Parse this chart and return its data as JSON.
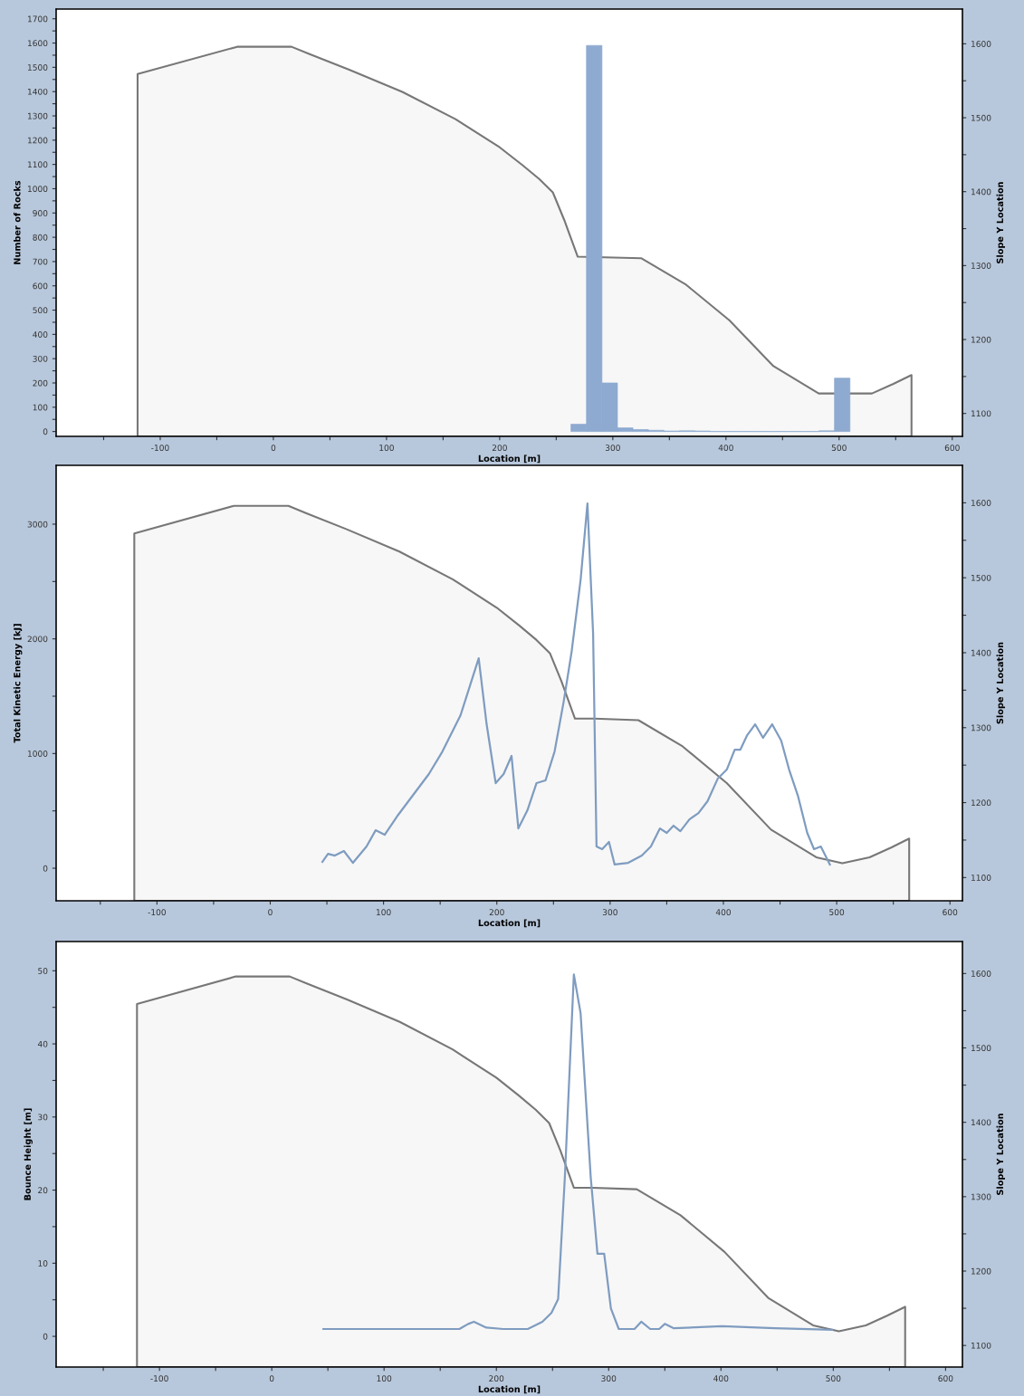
{
  "chart_data": [
    {
      "type": "histogram",
      "ylabel": "Number of Rocks",
      "y2label": "Slope Y Location",
      "xlabel": "Location [m]",
      "xlim": [
        -192,
        609
      ],
      "ylim": [
        -20,
        1740
      ],
      "y2lim": [
        1069,
        1647
      ],
      "xticks": [
        {
          "value": -150,
          "label": null
        },
        -100,
        {
          "value": -50,
          "label": null
        },
        0,
        {
          "value": 50,
          "label": null
        },
        100,
        {
          "value": 150,
          "label": null
        },
        200,
        {
          "value": 250,
          "label": null
        },
        300,
        {
          "value": 350,
          "label": null
        },
        400,
        {
          "value": 450,
          "label": null
        },
        500,
        {
          "value": 550,
          "label": null
        },
        600
      ],
      "yticks": [
        0,
        {
          "value": 50,
          "label": null
        },
        100,
        {
          "value": 150,
          "label": null
        },
        200,
        {
          "value": 250,
          "label": null
        },
        300,
        {
          "value": 350,
          "label": null
        },
        400,
        {
          "value": 450,
          "label": null
        },
        500,
        {
          "value": 550,
          "label": null
        },
        600,
        {
          "value": 650,
          "label": null
        },
        700,
        {
          "value": 750,
          "label": null
        },
        800,
        {
          "value": 850,
          "label": null
        },
        900,
        {
          "value": 950,
          "label": null
        },
        1000,
        {
          "value": 1050,
          "label": null
        },
        1100,
        {
          "value": 1150,
          "label": null
        },
        1200,
        {
          "value": 1250,
          "label": null
        },
        1300,
        {
          "value": 1350,
          "label": null
        },
        1400,
        {
          "value": 1450,
          "label": null
        },
        1500,
        {
          "value": 1550,
          "label": null
        },
        1600,
        {
          "value": 1650,
          "label": null
        },
        1700
      ],
      "y2ticks": [
        1100,
        {
          "value": 1150,
          "label": null
        },
        1200,
        {
          "value": 1250,
          "label": null
        },
        1300,
        {
          "value": 1350,
          "label": null
        },
        1400,
        {
          "value": 1450,
          "label": null
        },
        1500,
        {
          "value": 1550,
          "label": null
        },
        1600
      ],
      "grid": false,
      "legend": false,
      "series": [
        {
          "color": "#8eaad0",
          "bins": [
            263,
            276.7,
            290.4,
            304.1,
            317.8,
            331.5,
            345.2,
            358.9,
            372.6,
            386.3,
            400,
            413.7,
            427.4,
            441.1,
            454.8,
            468.5,
            482.2,
            495.9,
            509.6
          ],
          "values": [
            30,
            1590,
            200,
            15,
            8,
            5,
            2,
            3,
            2,
            0,
            0,
            0,
            0,
            0,
            0,
            0,
            3,
            220
          ]
        },
        {
          "type": "area",
          "axis": "y2",
          "color": "#777777",
          "x": [
            -120,
            -32,
            16,
            32,
            67,
            114,
            161,
            200,
            220,
            235,
            247,
            257,
            269,
            286,
            325,
            364,
            403,
            442,
            482,
            505,
            529,
            548,
            564
          ],
          "values": [
            1559,
            1596,
            1596,
            1586,
            1565,
            1535,
            1498,
            1460,
            1436,
            1417,
            1399,
            1362,
            1312,
            null,
            1310,
            1275,
            1226,
            1164,
            1127,
            null,
            1127,
            1140,
            1152
          ]
        }
      ]
    },
    {
      "type": "line",
      "ylabel": "Total Kinetic Energy [kJ]",
      "y2label": "Slope Y Location",
      "xlabel": "Location [m]",
      "xlim": [
        -189,
        611
      ],
      "ylim": [
        -284,
        3513
      ],
      "y2lim": [
        1069,
        1650
      ],
      "xticks": [
        {
          "value": -150,
          "label": null
        },
        -100,
        {
          "value": -50,
          "label": null
        },
        0,
        {
          "value": 50,
          "label": null
        },
        100,
        {
          "value": 150,
          "label": null
        },
        200,
        {
          "value": 250,
          "label": null
        },
        300,
        {
          "value": 350,
          "label": null
        },
        400,
        {
          "value": 450,
          "label": null
        },
        500,
        {
          "value": 550,
          "label": null
        },
        600
      ],
      "yticks": [
        0,
        {
          "value": 500,
          "label": null
        },
        1000,
        {
          "value": 1500,
          "label": null
        },
        2000,
        {
          "value": 2500,
          "label": null
        },
        3000
      ],
      "y2ticks": [
        1100,
        {
          "value": 1150,
          "label": null
        },
        1200,
        {
          "value": 1250,
          "label": null
        },
        1300,
        {
          "value": 1350,
          "label": null
        },
        1400,
        {
          "value": 1450,
          "label": null
        },
        1500,
        {
          "value": 1550,
          "label": null
        },
        1600
      ],
      "grid": false,
      "legend": false,
      "series": [
        {
          "color": "#7f9cc0",
          "x": [
            46,
            51,
            57,
            65,
            73,
            85,
            93,
            101,
            113,
            125,
            140,
            152,
            168,
            184,
            191,
            199,
            206,
            213,
            219,
            227,
            235,
            243,
            251,
            259,
            266,
            274,
            280,
            285,
            288,
            293,
            299,
            304,
            316,
            328,
            336,
            344,
            350,
            356,
            362,
            370,
            378,
            386,
            395,
            403,
            410,
            415,
            421,
            428,
            435,
            443,
            451,
            458,
            466,
            474,
            480,
            486,
            494
          ],
          "values": [
            55,
            126,
            110,
            150,
            47,
            189,
            331,
            292,
            466,
            624,
            821,
            1018,
            1334,
            1831,
            1255,
            742,
            821,
            979,
            347,
            505,
            742,
            766,
            1018,
            1452,
            1886,
            2518,
            3181,
            2044,
            189,
            166,
            229,
            32,
            47,
            110,
            189,
            347,
            308,
            371,
            323,
            426,
            481,
            584,
            781,
            860,
            1034,
            1034,
            1160,
            1255,
            1137,
            1255,
            1113,
            860,
            624,
            308,
            166,
            189,
            32
          ]
        },
        {
          "type": "area",
          "axis": "y2",
          "color": "#777777",
          "x": [
            -120,
            -32,
            16,
            32,
            67,
            114,
            161,
            200,
            220,
            235,
            247,
            257,
            269,
            286,
            325,
            364,
            403,
            442,
            482,
            505,
            529,
            548,
            564
          ],
          "values": [
            1559,
            1596,
            1596,
            1586,
            1565,
            1535,
            1498,
            1460,
            1436,
            1417,
            1399,
            1362,
            1312,
            1312,
            1310,
            1275,
            1226,
            1164,
            1127,
            1119,
            1127,
            1140,
            1152
          ]
        }
      ]
    },
    {
      "type": "line",
      "ylabel": "Bounce Height [m]",
      "y2label": "Slope Y Location",
      "xlabel": "Location [m]",
      "xlim": [
        -192,
        615
      ],
      "ylim": [
        -4.2,
        54
      ],
      "y2lim": [
        1071,
        1643
      ],
      "xticks": [
        {
          "value": -150,
          "label": null
        },
        -100,
        {
          "value": -50,
          "label": null
        },
        0,
        {
          "value": 50,
          "label": null
        },
        100,
        {
          "value": 150,
          "label": null
        },
        200,
        {
          "value": 250,
          "label": null
        },
        300,
        {
          "value": 350,
          "label": null
        },
        400,
        {
          "value": 450,
          "label": null
        },
        500,
        {
          "value": 550,
          "label": null
        },
        600
      ],
      "yticks": [
        0,
        {
          "value": 5,
          "label": null
        },
        10,
        {
          "value": 15,
          "label": null
        },
        20,
        {
          "value": 25,
          "label": null
        },
        30,
        {
          "value": 35,
          "label": null
        },
        40,
        {
          "value": 45,
          "label": null
        },
        50
      ],
      "y2ticks": [
        1100,
        {
          "value": 1150,
          "label": null
        },
        1200,
        {
          "value": 1250,
          "label": null
        },
        1300,
        {
          "value": 1350,
          "label": null
        },
        1400,
        {
          "value": 1450,
          "label": null
        },
        1500,
        {
          "value": 1550,
          "label": null
        },
        1600
      ],
      "grid": false,
      "legend": false,
      "series": [
        {
          "color": "#7f9cc0",
          "x": [
            46,
            167,
            175,
            180,
            191,
            206,
            228,
            241,
            249,
            255,
            261,
            269,
            275,
            284,
            290,
            296,
            302,
            309,
            323,
            329,
            337,
            345,
            350,
            358,
            401,
            448,
            499
          ],
          "values": [
            1.0,
            1.0,
            1.7,
            2.0,
            1.2,
            1.0,
            1.0,
            2.0,
            3.2,
            5.1,
            21.8,
            49.5,
            44.2,
            21.8,
            11.3,
            11.3,
            3.8,
            1.0,
            1.0,
            2.0,
            1.0,
            1.0,
            1.7,
            1.1,
            1.4,
            1.1,
            0.9
          ]
        },
        {
          "type": "area",
          "axis": "y2",
          "color": "#777777",
          "x": [
            -120,
            -32,
            16,
            32,
            67,
            114,
            161,
            200,
            220,
            235,
            247,
            257,
            269,
            286,
            325,
            364,
            403,
            442,
            482,
            505,
            529,
            548,
            564
          ],
          "values": [
            1559,
            1596,
            1596,
            1586,
            1565,
            1535,
            1498,
            1460,
            1436,
            1417,
            1399,
            1362,
            1312,
            1312,
            1310,
            1275,
            1226,
            1164,
            1127,
            1119,
            1127,
            1140,
            1152
          ]
        }
      ]
    }
  ]
}
